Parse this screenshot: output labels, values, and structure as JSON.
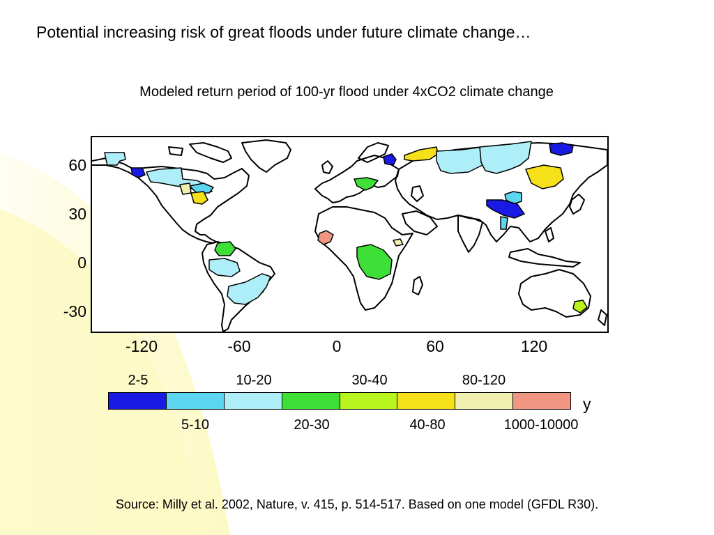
{
  "slide": {
    "title": "Potential increasing risk of great floods under future climate change…",
    "source": "Source:  Milly et al. 2002, Nature, v. 415, p. 514-517.  Based on one model (GFDL R30)."
  },
  "map": {
    "title": "Modeled return period of 100-yr flood under 4xCO2 climate change",
    "lon_range": [
      -155,
      165
    ],
    "lat_range": [
      -45,
      78
    ],
    "y_ticks": [
      "60",
      "30",
      "0",
      "-30"
    ],
    "x_ticks": [
      "-120",
      "-60",
      "0",
      "60",
      "120"
    ],
    "y_tick_values": [
      60,
      30,
      0,
      -30
    ],
    "x_tick_values": [
      -120,
      -60,
      0,
      60,
      120
    ]
  },
  "legend": {
    "unit": "y",
    "top_labels": [
      "2-5",
      "10-20",
      "30-40",
      "80-120"
    ],
    "bottom_labels": [
      "5-10",
      "20-30",
      "40-80",
      "1000-10000"
    ],
    "classes": [
      {
        "label": "2-5",
        "color": "#1a1ae6"
      },
      {
        "label": "5-10",
        "color": "#5cd6f0"
      },
      {
        "label": "10-20",
        "color": "#aeeef8"
      },
      {
        "label": "20-30",
        "color": "#3ee038"
      },
      {
        "label": "30-40",
        "color": "#b8f51e"
      },
      {
        "label": "40-80",
        "color": "#f6e01a"
      },
      {
        "label": "80-120",
        "color": "#f2f0b0"
      },
      {
        "label": "1000-10000",
        "color": "#f29684"
      }
    ]
  },
  "colors": {
    "background_yellow": "#fdf9c4",
    "map_outline": "#000000"
  }
}
